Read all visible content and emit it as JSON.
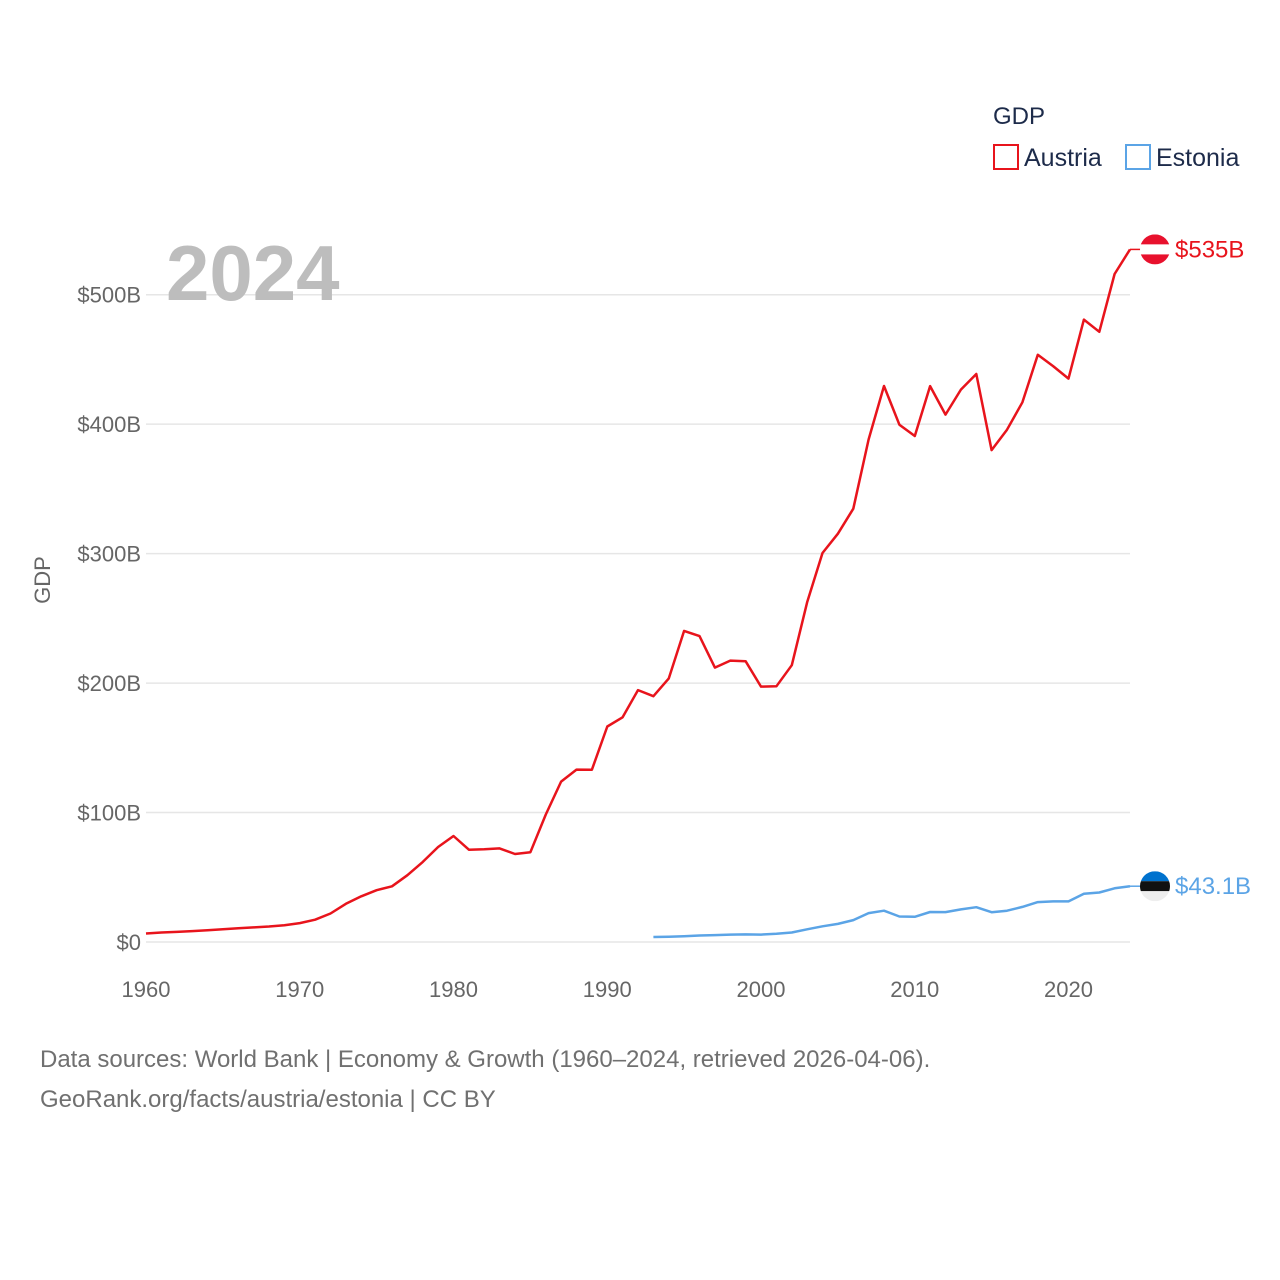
{
  "chart_data": {
    "type": "line",
    "title": "GDP",
    "year_label": "2024",
    "ylabel": "GDP",
    "xlim": [
      1960,
      2024
    ],
    "ylim": [
      0,
      550
    ],
    "x_ticks": [
      1960,
      1970,
      1980,
      1990,
      2000,
      2010,
      2020
    ],
    "x_tick_labels": [
      "1960",
      "1970",
      "1980",
      "1990",
      "2000",
      "2010",
      "2020"
    ],
    "y_ticks": [
      0,
      100,
      200,
      300,
      400,
      500
    ],
    "y_tick_labels": [
      "$0",
      "$100B",
      "$200B",
      "$300B",
      "$400B",
      "$500B"
    ],
    "legend": {
      "title": "GDP",
      "position": "top-right"
    },
    "series": [
      {
        "name": "Austria",
        "color": "#e8141c",
        "flag": "austria-flag-icon",
        "end_label": "$535B",
        "x": [
          1960,
          1961,
          1962,
          1963,
          1964,
          1965,
          1966,
          1967,
          1968,
          1969,
          1970,
          1971,
          1972,
          1973,
          1974,
          1975,
          1976,
          1977,
          1978,
          1979,
          1980,
          1981,
          1982,
          1983,
          1984,
          1985,
          1986,
          1987,
          1988,
          1989,
          1990,
          1991,
          1992,
          1993,
          1994,
          1995,
          1996,
          1997,
          1998,
          1999,
          2000,
          2001,
          2002,
          2003,
          2004,
          2005,
          2006,
          2007,
          2008,
          2009,
          2010,
          2011,
          2012,
          2013,
          2014,
          2015,
          2016,
          2017,
          2018,
          2019,
          2020,
          2021,
          2022,
          2023,
          2024
        ],
        "values": [
          6.6,
          7.3,
          7.8,
          8.4,
          9.1,
          9.8,
          10.6,
          11.3,
          12.0,
          13.0,
          14.6,
          17.2,
          22.0,
          29.5,
          35.3,
          40.0,
          43.0,
          51.6,
          61.9,
          73.4,
          81.9,
          71.3,
          71.6,
          72.3,
          68.0,
          69.4,
          98.5,
          123.9,
          133.2,
          133.1,
          166.5,
          173.6,
          194.6,
          189.9,
          203.6,
          240.3,
          236.3,
          212.0,
          217.4,
          216.9,
          197.3,
          197.5,
          213.8,
          262.3,
          300.5,
          315.4,
          334.7,
          388.2,
          429.5,
          399.6,
          390.9,
          429.4,
          407.4,
          426.7,
          438.8,
          380.0,
          395.7,
          416.9,
          453.6,
          444.9,
          435.2,
          480.8,
          471.4,
          516.0,
          535.0
        ]
      },
      {
        "name": "Estonia",
        "color": "#5ba4e6",
        "flag": "estonia-flag-icon",
        "end_label": "$43.1B",
        "x": [
          1993,
          1994,
          1995,
          1996,
          1997,
          1998,
          1999,
          2000,
          2001,
          2002,
          2003,
          2004,
          2005,
          2006,
          2007,
          2008,
          2009,
          2010,
          2011,
          2012,
          2013,
          2014,
          2015,
          2016,
          2017,
          2018,
          2019,
          2020,
          2021,
          2022,
          2023,
          2024
        ],
        "values": [
          3.9,
          4.1,
          4.5,
          5.0,
          5.3,
          5.7,
          5.9,
          5.7,
          6.3,
          7.3,
          9.8,
          12.1,
          14.0,
          16.9,
          22.3,
          24.2,
          19.7,
          19.5,
          23.2,
          23.1,
          25.2,
          26.9,
          23.0,
          24.2,
          27.1,
          30.8,
          31.4,
          31.4,
          37.2,
          38.2,
          41.5,
          43.1
        ]
      }
    ]
  },
  "footer": {
    "line1": "Data sources: World Bank | Economy & Growth (1960–2024, retrieved 2026-04-06).",
    "line2": "GeoRank.org/facts/austria/estonia | CC BY"
  }
}
